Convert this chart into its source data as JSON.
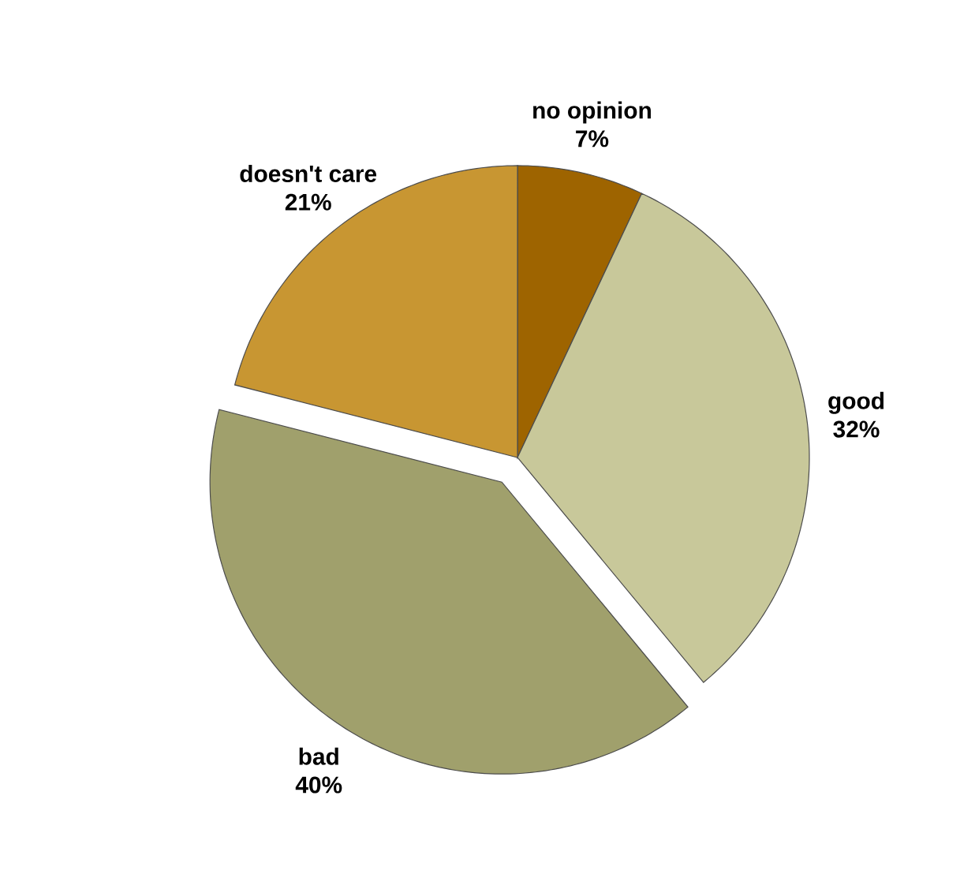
{
  "chart_data": {
    "type": "pie",
    "categories": [
      "no opinion",
      "good",
      "bad",
      "doesn't care"
    ],
    "values": [
      7,
      32,
      40,
      21
    ],
    "value_labels": [
      "7%",
      "32%",
      "40%",
      "21%"
    ],
    "colors": [
      "#9e6400",
      "#c8c89a",
      "#a0a06c",
      "#c89632"
    ]
  }
}
